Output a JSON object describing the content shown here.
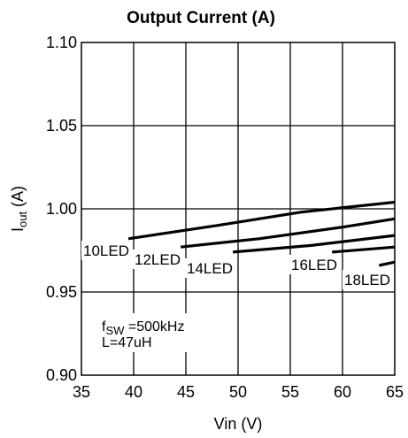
{
  "chart_data": {
    "type": "line",
    "title": "Output Current (A)",
    "xlabel": "Vin (V)",
    "ylabel": "I",
    "ylabel_sub": "out",
    "ylabel_unit": " (A)",
    "xlim": [
      35,
      65
    ],
    "ylim": [
      0.9,
      1.1
    ],
    "x_ticks": [
      35,
      40,
      45,
      50,
      55,
      60,
      65
    ],
    "x_tick_labels": [
      "35",
      "40",
      "45",
      "50",
      "55",
      "60",
      "65"
    ],
    "y_ticks": [
      0.9,
      0.95,
      1.0,
      1.05,
      1.1
    ],
    "y_tick_labels": [
      "0.90",
      "0.95",
      "1.00",
      "1.05",
      "1.10"
    ],
    "grid": true,
    "series": [
      {
        "name": "10LED",
        "x": [
          39.5,
          48,
          56,
          65
        ],
        "y": [
          0.982,
          0.99,
          0.998,
          1.004
        ]
      },
      {
        "name": "12LED",
        "x": [
          44.5,
          52,
          60,
          65
        ],
        "y": [
          0.977,
          0.982,
          0.989,
          0.994
        ]
      },
      {
        "name": "14LED",
        "x": [
          49.5,
          57,
          65
        ],
        "y": [
          0.974,
          0.978,
          0.984
        ]
      },
      {
        "name": "16LED",
        "x": [
          59,
          65
        ],
        "y": [
          0.974,
          0.977
        ]
      },
      {
        "name": "18LED",
        "x": [
          63.5,
          65
        ],
        "y": [
          0.966,
          0.968
        ]
      }
    ],
    "annotation": {
      "line1_prefix": "f",
      "line1_sub": "SW",
      "line1_value": " =500kHz",
      "line2": "L=47uH"
    }
  }
}
